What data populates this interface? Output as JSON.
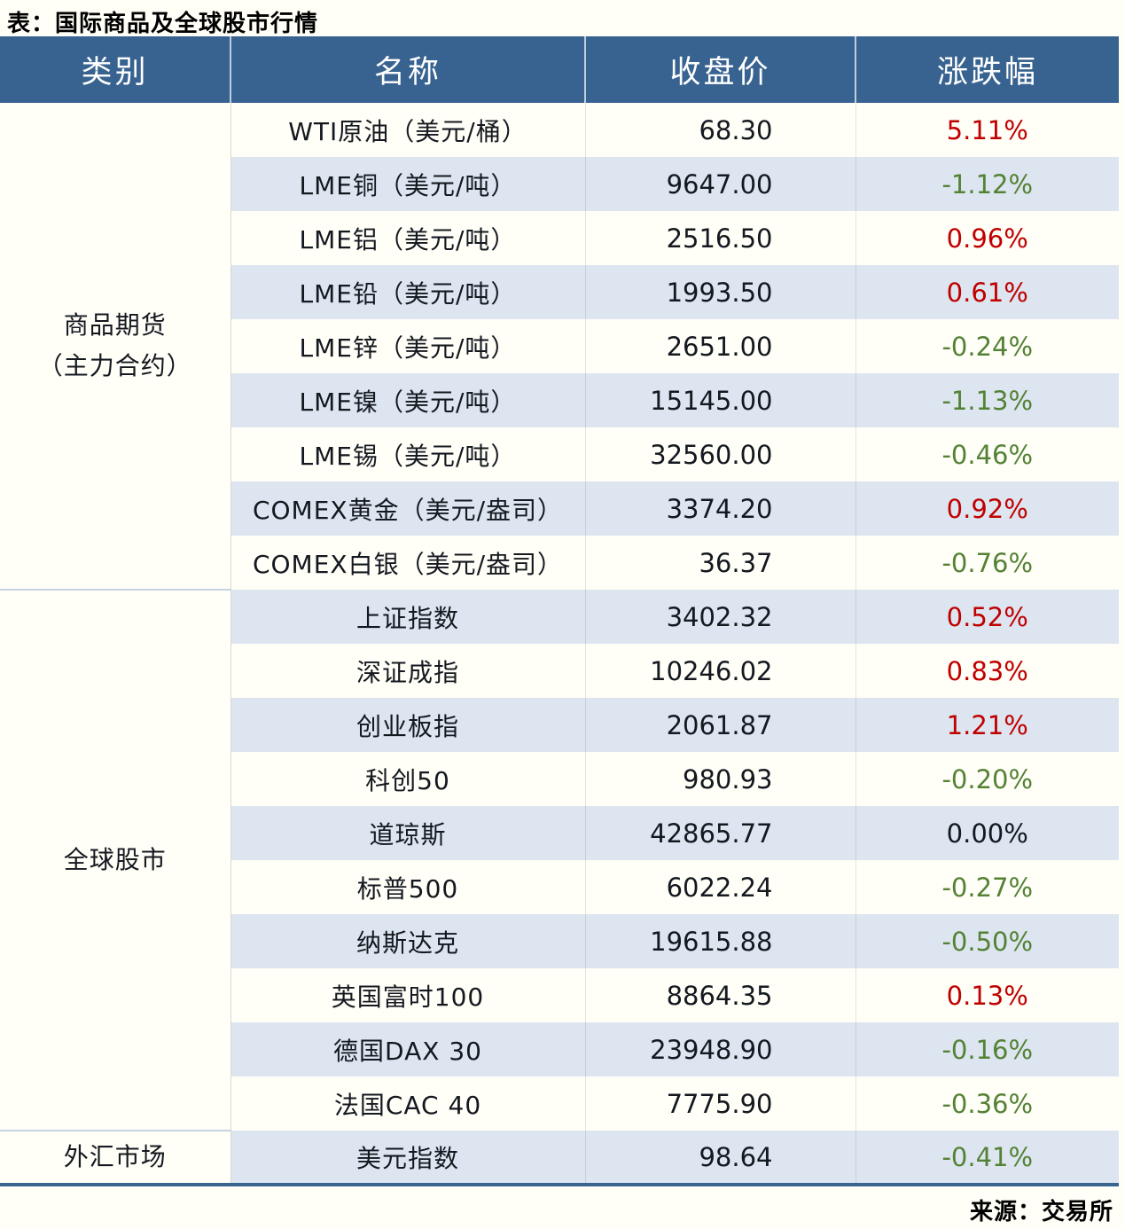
{
  "title": "表：国际商品及全球股市行情",
  "source": "来源：交易所",
  "colors": {
    "header_bg": "#386390",
    "header_text": "#FFFFFF",
    "shaded_row": "#DCE5F0",
    "up_red": "#C00000",
    "down_green": "#548235",
    "flat_black": "#14181F",
    "bottom_border_blue": "#38648F"
  },
  "chart_data": {
    "type": "table",
    "title": "表：国际商品及全球股市行情",
    "source": "来源：交易所",
    "columns": [
      "类别",
      "名称",
      "收盘价",
      "涨跌幅"
    ],
    "groups": [
      {
        "label": "商品期货\n（主力合约）",
        "rowspan": 9
      },
      {
        "label": "全球股市",
        "rowspan": 10
      },
      {
        "label": "外汇市场",
        "rowspan": 1
      }
    ],
    "rows": [
      {
        "group": "商品期货（主力合约）",
        "name": "WTI原油（美元/桶）",
        "close": "68.30",
        "change": "5.11%",
        "direction": "up"
      },
      {
        "group": "商品期货（主力合约）",
        "name": "LME铜（美元/吨）",
        "close": "9647.00",
        "change": "-1.12%",
        "direction": "down"
      },
      {
        "group": "商品期货（主力合约）",
        "name": "LME铝（美元/吨）",
        "close": "2516.50",
        "change": "0.96%",
        "direction": "up"
      },
      {
        "group": "商品期货（主力合约）",
        "name": "LME铅（美元/吨）",
        "close": "1993.50",
        "change": "0.61%",
        "direction": "up"
      },
      {
        "group": "商品期货（主力合约）",
        "name": "LME锌（美元/吨）",
        "close": "2651.00",
        "change": "-0.24%",
        "direction": "down"
      },
      {
        "group": "商品期货（主力合约）",
        "name": "LME镍（美元/吨）",
        "close": "15145.00",
        "change": "-1.13%",
        "direction": "down"
      },
      {
        "group": "商品期货（主力合约）",
        "name": "LME锡（美元/吨）",
        "close": "32560.00",
        "change": "-0.46%",
        "direction": "down"
      },
      {
        "group": "商品期货（主力合约）",
        "name": "COMEX黄金（美元/盎司）",
        "close": "3374.20",
        "change": "0.92%",
        "direction": "up"
      },
      {
        "group": "商品期货（主力合约）",
        "name": "COMEX白银（美元/盎司）",
        "close": "36.37",
        "change": "-0.76%",
        "direction": "down"
      },
      {
        "group": "全球股市",
        "name": "上证指数",
        "close": "3402.32",
        "change": "0.52%",
        "direction": "up"
      },
      {
        "group": "全球股市",
        "name": "深证成指",
        "close": "10246.02",
        "change": "0.83%",
        "direction": "up"
      },
      {
        "group": "全球股市",
        "name": "创业板指",
        "close": "2061.87",
        "change": "1.21%",
        "direction": "up"
      },
      {
        "group": "全球股市",
        "name": "科创50",
        "close": "980.93",
        "change": "-0.20%",
        "direction": "down"
      },
      {
        "group": "全球股市",
        "name": "道琼斯",
        "close": "42865.77",
        "change": "0.00%",
        "direction": "flat"
      },
      {
        "group": "全球股市",
        "name": "标普500",
        "close": "6022.24",
        "change": "-0.27%",
        "direction": "down"
      },
      {
        "group": "全球股市",
        "name": "纳斯达克",
        "close": "19615.88",
        "change": "-0.50%",
        "direction": "down"
      },
      {
        "group": "全球股市",
        "name": "英国富时100",
        "close": "8864.35",
        "change": "0.13%",
        "direction": "up"
      },
      {
        "group": "全球股市",
        "name": "德国DAX 30",
        "close": "23948.90",
        "change": "-0.16%",
        "direction": "down"
      },
      {
        "group": "全球股市",
        "name": "法国CAC 40",
        "close": "7775.90",
        "change": "-0.36%",
        "direction": "down"
      },
      {
        "group": "外汇市场",
        "name": "美元指数",
        "close": "98.64",
        "change": "-0.41%",
        "direction": "down"
      }
    ]
  }
}
